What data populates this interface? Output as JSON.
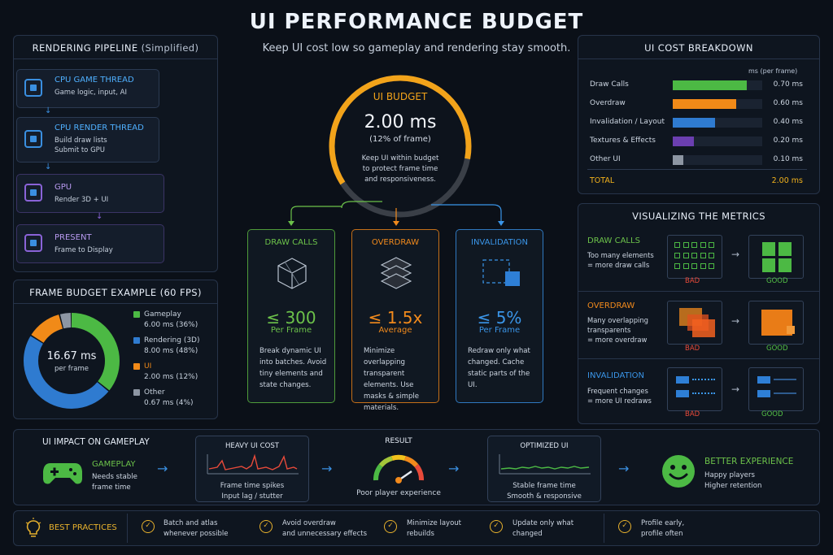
{
  "header": {
    "title": "UI PERFORMANCE BUDGET",
    "subtitle": "Keep UI cost low so gameplay and rendering stay smooth."
  },
  "pipeline": {
    "title": "RENDERING PIPELINE",
    "title_suffix": "(Simplified)",
    "steps": [
      {
        "name": "CPU GAME THREAD",
        "desc": "Game logic, input, AI",
        "icon": "chip-icon"
      },
      {
        "name": "CPU RENDER THREAD",
        "desc": "Build draw lists\nSubmit to GPU",
        "icon": "chip-icon"
      },
      {
        "name": "GPU",
        "desc": "Render 3D + UI",
        "icon": "gpu-icon"
      },
      {
        "name": "PRESENT",
        "desc": "Frame to Display",
        "icon": "display-icon"
      }
    ]
  },
  "frame_budget": {
    "title": "FRAME BUDGET EXAMPLE (60 FPS)",
    "center_value": "16.67 ms",
    "center_label": "per frame",
    "legend": [
      {
        "name": "Gameplay",
        "detail": "6.00 ms (36%)",
        "color": "#4cb944"
      },
      {
        "name": "Rendering (3D)",
        "detail": "8.00 ms (48%)",
        "color": "#2f7bd0"
      },
      {
        "name": "UI",
        "detail": "2.00 ms (12%)",
        "color": "#f18a18"
      },
      {
        "name": "Other",
        "detail": "0.67 ms (4%)",
        "color": "#8d96a3"
      }
    ]
  },
  "budget_ring": {
    "title": "UI BUDGET",
    "value": "2.00 ms",
    "percent": "(12% of frame)",
    "desc": "Keep UI within budget\nto protect frame time\nand responsiveness.",
    "fill_fraction": 0.62,
    "color": "#f2a31a"
  },
  "cards": [
    {
      "title": "DRAW CALLS",
      "value": "≤ 300",
      "unit": "Per Frame",
      "desc": "Break dynamic UI into batches. Avoid tiny elements and state changes.",
      "color": "#6cc24a",
      "icon": "cube-icon"
    },
    {
      "title": "OVERDRAW",
      "value": "≤ 1.5x",
      "unit": "Average",
      "desc": "Minimize overlapping transparent elements. Use masks & simple materials.",
      "color": "#f28a1c",
      "icon": "layers-icon"
    },
    {
      "title": "INVALIDATION",
      "value": "≤ 5%",
      "unit": "Per Frame",
      "desc": "Redraw only what changed. Cache static parts of the UI.",
      "color": "#3a95e8",
      "icon": "invalidation-icon"
    }
  ],
  "cost_breakdown": {
    "title": "UI COST BREAKDOWN",
    "unit_label": "ms (per frame)",
    "rows": [
      {
        "label": "Draw Calls",
        "value": "0.70 ms",
        "ms": 0.7,
        "color": "#4cb944"
      },
      {
        "label": "Overdraw",
        "value": "0.60 ms",
        "ms": 0.6,
        "color": "#f18a18"
      },
      {
        "label": "Invalidation / Layout",
        "value": "0.40 ms",
        "ms": 0.4,
        "color": "#2f7bd0"
      },
      {
        "label": "Textures & Effects",
        "value": "0.20 ms",
        "ms": 0.2,
        "color": "#6b3fb0"
      },
      {
        "label": "Other UI",
        "value": "0.10 ms",
        "ms": 0.1,
        "color": "#8d96a3"
      }
    ],
    "total_label": "TOTAL",
    "total_value": "2.00 ms"
  },
  "visualizing": {
    "title": "VISUALIZING THE METRICS",
    "bad_label": "BAD",
    "good_label": "GOOD",
    "items": [
      {
        "title": "DRAW CALLS",
        "desc": "Too many elements\n= more draw calls",
        "color": "#6cc24a"
      },
      {
        "title": "OVERDRAW",
        "desc": "Many overlapping\ntransparents\n= more overdraw",
        "color": "#f28a1c"
      },
      {
        "title": "INVALIDATION",
        "desc": "Frequent changes\n= more UI redraws",
        "color": "#3a95e8"
      }
    ]
  },
  "impact": {
    "title": "UI IMPACT ON GAMEPLAY",
    "gameplay_title": "GAMEPLAY",
    "gameplay_desc": "Needs stable\nframe time",
    "heavy_title": "HEAVY UI COST",
    "heavy_desc": "Frame time spikes\nInput lag / stutter",
    "result_title": "RESULT",
    "result_desc": "Poor player experience",
    "optimized_title": "OPTIMIZED UI",
    "optimized_desc": "Stable frame time\nSmooth & responsive",
    "better_title": "BETTER EXPERIENCE",
    "better_desc": "Happy players\nHigher retention"
  },
  "best_practices": {
    "title": "BEST PRACTICES",
    "items": [
      "Batch and atlas\nwhenever possible",
      "Avoid overdraw\nand unnecessary effects",
      "Minimize layout\nrebuilds",
      "Update only what\nchanged",
      "Profile early,\nprofile often"
    ]
  }
}
